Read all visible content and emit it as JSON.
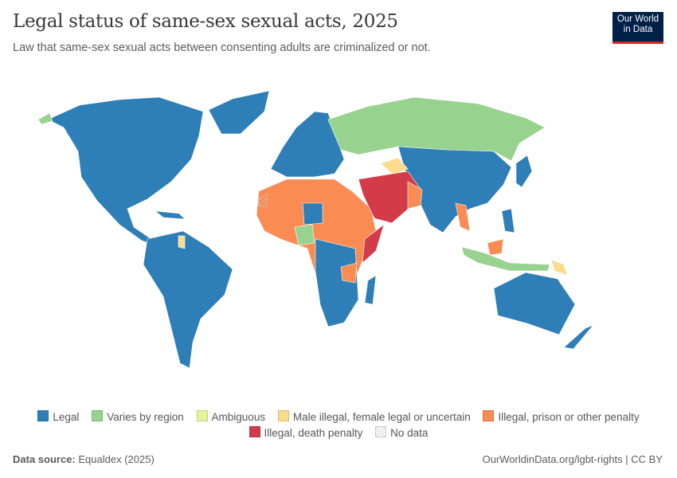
{
  "header": {
    "title": "Legal status of same-sex sexual acts, 2025",
    "subtitle": "Law that same-sex sexual acts between consenting adults are criminalized or not.",
    "logo_line1": "Our World",
    "logo_line2": "in Data"
  },
  "legend": [
    {
      "label": "Legal",
      "color": "#2e7eb7"
    },
    {
      "label": "Varies by region",
      "color": "#97d38f"
    },
    {
      "label": "Ambiguous",
      "color": "#e3f59b"
    },
    {
      "label": "Male illegal, female legal or uncertain",
      "color": "#fcdc8c"
    },
    {
      "label": "Illegal, prison or other penalty",
      "color": "#f98b53"
    },
    {
      "label": "Illegal, death penalty",
      "color": "#d43b4a"
    },
    {
      "label": "No data",
      "color": "#ffffff"
    }
  ],
  "footer": {
    "source_label": "Data source:",
    "source": "Equaldex (2025)",
    "link": "OurWorldinData.org/lgbt-rights | CC BY"
  }
}
